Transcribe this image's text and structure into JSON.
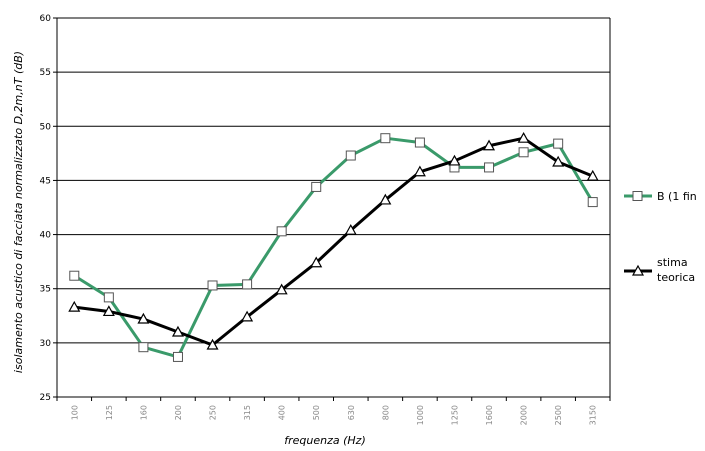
{
  "chart_data": {
    "type": "line",
    "xlabel": "frequenza (Hz)",
    "ylabel": "isolamento acustico di facciata normalizzato D,2m,nT (dB)",
    "ylim": [
      25,
      60
    ],
    "ytick_step": 5,
    "yticks": [
      "25",
      "30",
      "35",
      "40",
      "45",
      "50",
      "55",
      "60"
    ],
    "grid": "horizontal",
    "legend_position": "right",
    "categories": [
      "100",
      "125",
      "160",
      "200",
      "250",
      "315",
      "400",
      "500",
      "630",
      "800",
      "1000",
      "1250",
      "1600",
      "2000",
      "2500",
      "3150"
    ],
    "series": [
      {
        "name": "B (1 fin",
        "color": "#3a9a6a",
        "marker": "square",
        "values": [
          36.2,
          34.2,
          29.6,
          28.7,
          35.3,
          35.4,
          40.3,
          44.4,
          47.3,
          48.9,
          48.5,
          46.2,
          46.2,
          47.6,
          48.4,
          43.0
        ]
      },
      {
        "name": "stima teorica",
        "color": "#000000",
        "marker": "triangle",
        "values": [
          33.3,
          32.9,
          32.2,
          31.0,
          29.8,
          32.4,
          34.9,
          37.4,
          40.4,
          43.2,
          45.8,
          46.8,
          48.2,
          48.9,
          46.7,
          45.4
        ]
      }
    ]
  }
}
